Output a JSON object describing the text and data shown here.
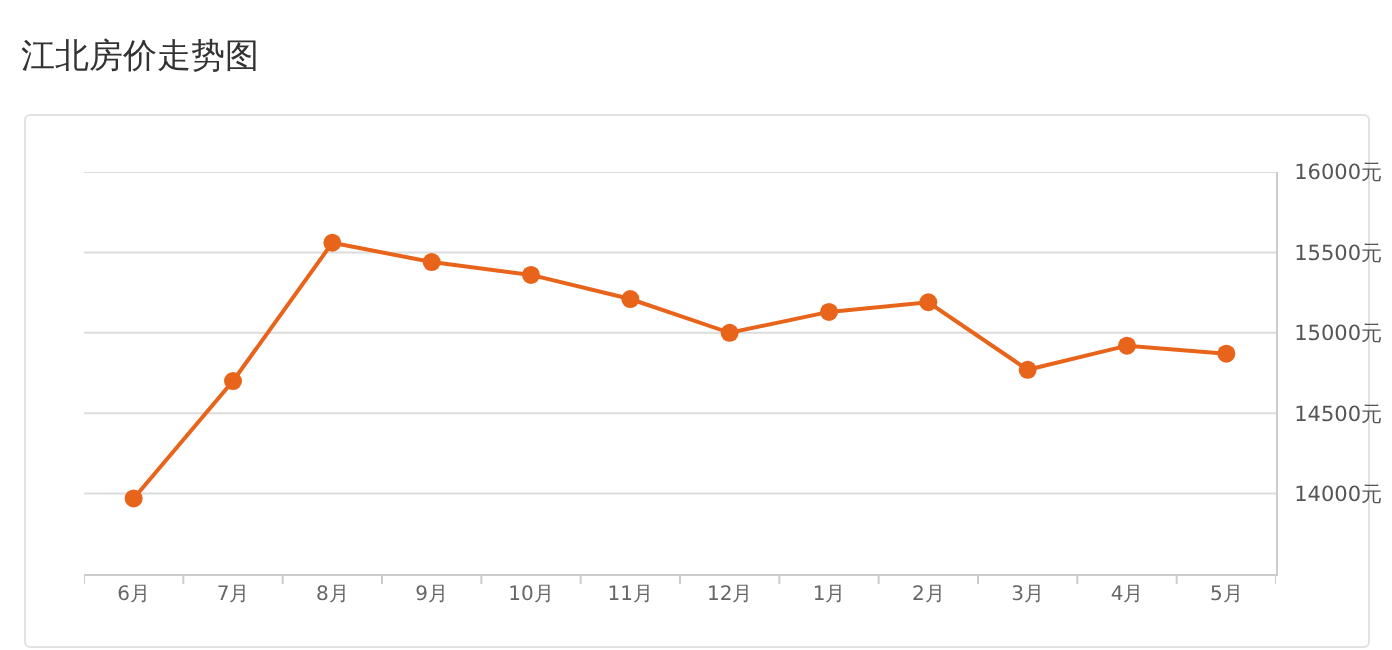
{
  "chart_data": {
    "type": "line",
    "title": "江北房价走势图",
    "categories": [
      "6月",
      "7月",
      "8月",
      "9月",
      "10月",
      "11月",
      "12月",
      "1月",
      "2月",
      "3月",
      "4月",
      "5月"
    ],
    "values": [
      13970,
      14700,
      15560,
      15440,
      15360,
      15210,
      15000,
      15130,
      15190,
      14770,
      14920,
      14870
    ],
    "color": "#e8641b",
    "marker": "circle",
    "line_style": "solid",
    "ylim": [
      13500,
      16000
    ],
    "yticks": [
      {
        "value": 14000,
        "label": "14000元"
      },
      {
        "value": 14500,
        "label": "14500元"
      },
      {
        "value": 15000,
        "label": "15000元"
      },
      {
        "value": 15500,
        "label": "15500元"
      },
      {
        "value": 16000,
        "label": "16000元"
      }
    ],
    "grid": "y"
  }
}
